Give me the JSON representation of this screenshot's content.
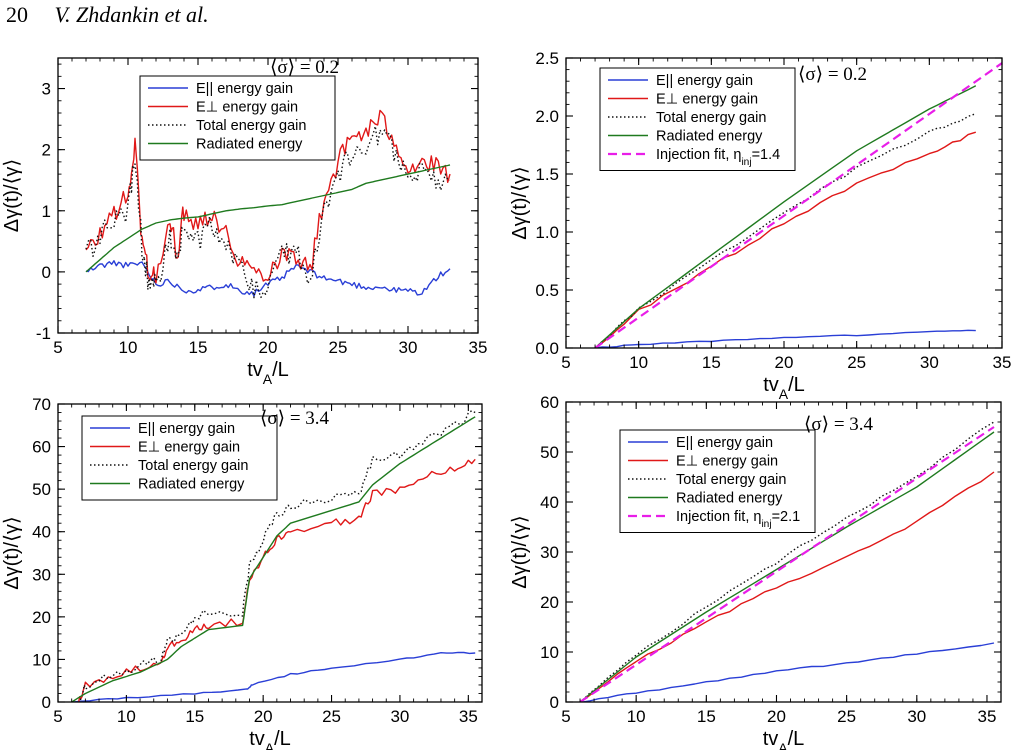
{
  "header": {
    "page_number": "20",
    "authors": "V. Zhdankin et al."
  },
  "chart_data": [
    {
      "type": "line",
      "annotation": "⟨σ⟩ = 0.2",
      "xlabel": "tv_A/L",
      "ylabel": "Δγ(t)/⟨γ⟩",
      "xlim": [
        5,
        35
      ],
      "ylim": [
        -1,
        3.5
      ],
      "xticks": [
        5,
        10,
        15,
        20,
        25,
        30,
        35
      ],
      "yticks": [
        -1,
        0,
        1,
        2,
        3
      ],
      "grid": false,
      "legend": "top-center",
      "series": [
        {
          "name": "E|| energy gain",
          "color": "#2a3fd6",
          "style": "solid",
          "x": [
            7,
            8,
            9,
            10,
            11,
            12,
            13,
            14,
            15,
            16,
            17,
            18,
            19,
            20,
            21,
            22,
            23,
            24,
            25,
            26,
            27,
            28,
            29,
            30,
            31,
            32,
            33
          ],
          "y": [
            0.0,
            0.1,
            0.15,
            0.1,
            0.15,
            -0.2,
            -0.15,
            -0.3,
            -0.3,
            -0.25,
            -0.2,
            -0.3,
            -0.35,
            -0.2,
            -0.1,
            0.1,
            0.0,
            -0.1,
            -0.15,
            -0.2,
            -0.25,
            -0.25,
            -0.3,
            -0.3,
            -0.35,
            -0.1,
            0.05
          ],
          "noise": 0.05
        },
        {
          "name": "E⊥ energy gain",
          "color": "#e01818",
          "style": "solid",
          "x": [
            7,
            8,
            9,
            10,
            10.5,
            11,
            11.5,
            12,
            13,
            13.5,
            14,
            15,
            16,
            17,
            18,
            19,
            20,
            21,
            22,
            23,
            24,
            25,
            26,
            27,
            28,
            29,
            30,
            31,
            32,
            33
          ],
          "y": [
            0.3,
            0.6,
            1.0,
            1.2,
            2.1,
            0.5,
            0.0,
            -0.1,
            0.8,
            0.3,
            1.0,
            0.8,
            1.0,
            0.6,
            0.2,
            0.0,
            0.0,
            0.3,
            0.3,
            0.0,
            1.2,
            1.8,
            2.2,
            2.3,
            2.5,
            2.2,
            1.7,
            1.8,
            1.7,
            1.6
          ],
          "noise": 0.18
        },
        {
          "name": "Total energy gain",
          "color": "#111111",
          "style": "dotted",
          "x": [
            7,
            8,
            9,
            10,
            10.5,
            11,
            11.5,
            12,
            13,
            13.5,
            14,
            15,
            16,
            17,
            18,
            19,
            20,
            21,
            22,
            23,
            24,
            25,
            26,
            27,
            28,
            29,
            30,
            31,
            32,
            33
          ],
          "y": [
            0.3,
            0.55,
            0.9,
            1.0,
            1.9,
            0.4,
            -0.2,
            -0.25,
            0.6,
            0.2,
            0.7,
            0.5,
            0.8,
            0.4,
            0.0,
            -0.3,
            -0.2,
            0.3,
            0.3,
            -0.1,
            1.0,
            1.6,
            2.0,
            2.1,
            2.3,
            2.0,
            1.5,
            1.6,
            1.5,
            1.5
          ],
          "noise": 0.2
        },
        {
          "name": "Radiated energy",
          "color": "#1f7a1f",
          "style": "solid",
          "x": [
            7,
            8,
            9,
            10,
            11,
            12,
            13,
            14,
            15,
            16,
            17,
            18,
            19,
            20,
            21,
            22,
            23,
            24,
            25,
            26,
            27,
            28,
            29,
            30,
            31,
            32,
            33
          ],
          "y": [
            0.0,
            0.2,
            0.4,
            0.55,
            0.7,
            0.8,
            0.85,
            0.88,
            0.9,
            0.95,
            1.0,
            1.03,
            1.05,
            1.08,
            1.1,
            1.15,
            1.2,
            1.25,
            1.3,
            1.35,
            1.45,
            1.5,
            1.55,
            1.6,
            1.65,
            1.7,
            1.75
          ],
          "noise": 0
        }
      ]
    },
    {
      "type": "line",
      "annotation": "⟨σ⟩ = 0.2",
      "xlabel": "tv_A/L",
      "ylabel": "Δγ(t)/⟨γ⟩",
      "xlim": [
        5,
        35
      ],
      "ylim": [
        0,
        2.5
      ],
      "xticks": [
        5,
        10,
        15,
        20,
        25,
        30,
        35
      ],
      "yticks": [
        0.0,
        0.5,
        1.0,
        1.5,
        2.0,
        2.5
      ],
      "ytick_labels": [
        "0.0",
        "0.5",
        "1.0",
        "1.5",
        "2.0",
        "2.5"
      ],
      "grid": false,
      "legend": "top-left",
      "series": [
        {
          "name": "E|| energy gain",
          "color": "#2a3fd6",
          "style": "solid",
          "x": [
            7,
            10,
            15,
            20,
            25,
            30,
            33.2
          ],
          "y": [
            0.0,
            0.03,
            0.06,
            0.09,
            0.11,
            0.14,
            0.15
          ],
          "noise": 0.004
        },
        {
          "name": "E⊥ energy gain",
          "color": "#e01818",
          "style": "solid",
          "x": [
            7,
            10,
            15,
            20,
            25,
            30,
            33.2
          ],
          "y": [
            0.0,
            0.32,
            0.7,
            1.08,
            1.42,
            1.68,
            1.86
          ],
          "noise": 0.015
        },
        {
          "name": "Total energy gain",
          "color": "#111111",
          "style": "dotted",
          "x": [
            7,
            10,
            15,
            20,
            25,
            30,
            33.2
          ],
          "y": [
            0.0,
            0.34,
            0.75,
            1.17,
            1.55,
            1.86,
            2.02
          ],
          "noise": 0.012
        },
        {
          "name": "Radiated energy",
          "color": "#1f7a1f",
          "style": "solid",
          "x": [
            7,
            10,
            15,
            20,
            25,
            30,
            33.2
          ],
          "y": [
            0.0,
            0.34,
            0.8,
            1.26,
            1.7,
            2.06,
            2.26
          ],
          "noise": 0
        },
        {
          "name": "Injection fit, η_inj=1.4",
          "color": "#e81ee8",
          "style": "dashed",
          "x": [
            7,
            35.5
          ],
          "y": [
            0.0,
            2.5
          ],
          "noise": 0
        }
      ]
    },
    {
      "type": "line",
      "annotation": "⟨σ⟩ = 3.4",
      "xlabel": "tv_A/L",
      "ylabel": "Δγ(t)/⟨γ⟩",
      "xlim": [
        5,
        36
      ],
      "ylim": [
        0,
        70
      ],
      "xticks": [
        5,
        10,
        15,
        20,
        25,
        30,
        35
      ],
      "yticks": [
        0,
        10,
        20,
        30,
        40,
        50,
        60,
        70
      ],
      "grid": false,
      "legend": "top-left",
      "series": [
        {
          "name": "E|| energy gain",
          "color": "#2a3fd6",
          "style": "solid",
          "x": [
            6,
            10,
            15,
            18.8,
            19.2,
            22,
            25,
            30,
            33,
            35.5
          ],
          "y": [
            0.0,
            1.0,
            2.0,
            3.0,
            4.0,
            6.5,
            8.0,
            10.0,
            11.5,
            11.5
          ],
          "noise": 0.2
        },
        {
          "name": "E⊥ energy gain",
          "color": "#e01818",
          "style": "solid",
          "x": [
            6.5,
            7,
            9,
            11,
            12.5,
            13,
            14,
            15,
            16,
            18.5,
            19,
            20,
            21,
            22,
            25,
            27,
            28,
            30,
            32,
            34,
            35.5
          ],
          "y": [
            0.0,
            4.0,
            6.0,
            8.0,
            9.0,
            13.0,
            14.0,
            17.0,
            18.0,
            19.0,
            29.0,
            34.0,
            38.0,
            40.0,
            42.0,
            43.0,
            49.0,
            50.0,
            53.0,
            55.0,
            57.0
          ],
          "noise": 0.9
        },
        {
          "name": "Total energy gain",
          "color": "#111111",
          "style": "dotted",
          "x": [
            6.5,
            7,
            9,
            11,
            12.5,
            13,
            14,
            15,
            16,
            18.5,
            19,
            20,
            21,
            22,
            25,
            27,
            28,
            30,
            32,
            34,
            35.5
          ],
          "y": [
            0.0,
            4.0,
            6.5,
            8.5,
            10.0,
            14.0,
            16.0,
            20.0,
            21.0,
            21.0,
            32.0,
            38.0,
            44.0,
            46.0,
            48.0,
            49.0,
            57.0,
            58.0,
            62.0,
            65.0,
            68.0
          ],
          "noise": 1.0
        },
        {
          "name": "Radiated energy",
          "color": "#1f7a1f",
          "style": "solid",
          "x": [
            6,
            7,
            9,
            11,
            13,
            14,
            15,
            16,
            18.5,
            19,
            20,
            21,
            22,
            25,
            27,
            28,
            30,
            32,
            34,
            35.5
          ],
          "y": [
            0.0,
            2.0,
            5.0,
            7.0,
            10.0,
            13.0,
            15.0,
            17.0,
            18.0,
            29.0,
            34.0,
            39.0,
            42.0,
            45.0,
            47.0,
            51.0,
            56.0,
            60.0,
            64.0,
            67.0
          ],
          "noise": 0
        }
      ]
    },
    {
      "type": "line",
      "annotation": "⟨σ⟩ = 3.4",
      "xlabel": "tv_A/L",
      "ylabel": "Δγ(t)/⟨γ⟩",
      "xlim": [
        5,
        36
      ],
      "ylim": [
        0,
        60
      ],
      "xticks": [
        5,
        10,
        15,
        20,
        25,
        30,
        35
      ],
      "yticks": [
        0,
        10,
        20,
        30,
        40,
        50,
        60
      ],
      "grid": false,
      "legend": "top-left",
      "series": [
        {
          "name": "E|| energy gain",
          "color": "#2a3fd6",
          "style": "solid",
          "x": [
            6,
            10,
            15,
            20,
            25,
            30,
            35.5
          ],
          "y": [
            0.0,
            1.8,
            4.0,
            6.2,
            7.8,
            9.6,
            11.8
          ],
          "noise": 0.15
        },
        {
          "name": "E⊥ energy gain",
          "color": "#e01818",
          "style": "solid",
          "x": [
            6,
            10,
            15,
            20,
            25,
            30,
            35.5
          ],
          "y": [
            0.0,
            8.0,
            16.0,
            23.0,
            29.0,
            36.0,
            46.0
          ],
          "noise": 0.3
        },
        {
          "name": "Total energy gain",
          "color": "#111111",
          "style": "dotted",
          "x": [
            6,
            10,
            15,
            20,
            25,
            30,
            35.5
          ],
          "y": [
            0.0,
            9.5,
            19.0,
            28.0,
            37.0,
            45.0,
            56.0
          ],
          "noise": 0.35
        },
        {
          "name": "Radiated energy",
          "color": "#1f7a1f",
          "style": "solid",
          "x": [
            6,
            10,
            15,
            20,
            25,
            30,
            35.5
          ],
          "y": [
            0.0,
            9.0,
            18.0,
            26.5,
            35.0,
            43.0,
            54.0
          ],
          "noise": 0
        },
        {
          "name": "Injection fit, η_inj=2.1",
          "color": "#e81ee8",
          "style": "dashed",
          "x": [
            6,
            35.5
          ],
          "y": [
            0.0,
            55.0
          ],
          "noise": 0
        }
      ]
    }
  ]
}
